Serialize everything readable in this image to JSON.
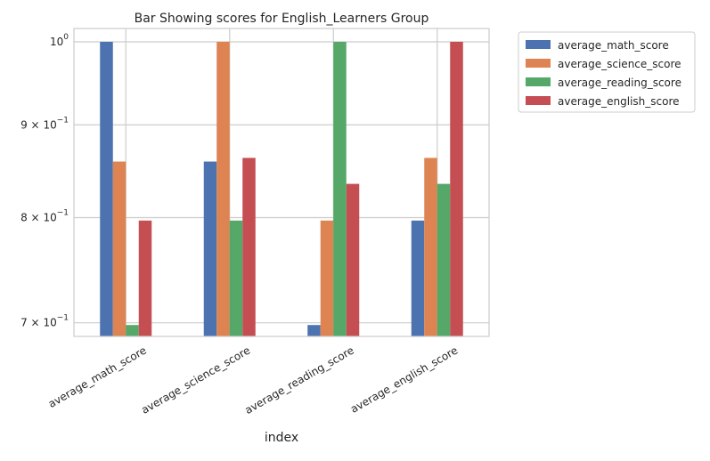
{
  "chart_data": {
    "type": "bar",
    "title": "Bar Showing scores for English_Learners Group",
    "xlabel": "index",
    "ylabel": "",
    "yscale": "log",
    "ylim": [
      0.688,
      1.0
    ],
    "grid": true,
    "legend_position": "outside-top-right",
    "categories": [
      "average_math_score",
      "average_science_score",
      "average_reading_score",
      "average_english_score"
    ],
    "series": [
      {
        "name": "average_math_score",
        "color": "#4c72b0",
        "values": [
          1.0,
          0.859,
          0.698,
          0.797
        ]
      },
      {
        "name": "average_science_score",
        "color": "#dd8452",
        "values": [
          0.859,
          1.0,
          0.797,
          0.863
        ]
      },
      {
        "name": "average_reading_score",
        "color": "#55a868",
        "values": [
          0.698,
          0.797,
          1.0,
          0.835
        ]
      },
      {
        "name": "average_english_score",
        "color": "#c44e52",
        "values": [
          0.797,
          0.863,
          0.835,
          1.0
        ]
      }
    ],
    "yticks": [
      {
        "value": 0.7,
        "mantissa": "7",
        "base": "10",
        "exp": "−1"
      },
      {
        "value": 0.8,
        "mantissa": "8",
        "base": "10",
        "exp": "−1"
      },
      {
        "value": 0.9,
        "mantissa": "9",
        "base": "10",
        "exp": "−1"
      },
      {
        "value": 1.0,
        "mantissa": "",
        "base": "10",
        "exp": "0"
      }
    ]
  }
}
